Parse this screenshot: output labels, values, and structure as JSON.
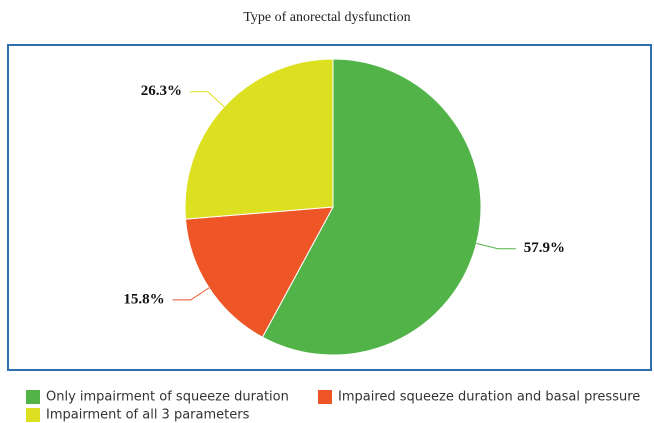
{
  "chart_data": {
    "type": "pie",
    "title": "Type of anorectal dysfunction",
    "categories": [
      "Only impairment of squeeze duration",
      "Impaired squeeze duration and basal pressure",
      "Impairment of all 3 parameters"
    ],
    "values": [
      57.9,
      15.8,
      26.3
    ],
    "value_labels": [
      "57.9%",
      "15.8%",
      "26.3%"
    ],
    "colors": [
      "#52b448",
      "#ee5527",
      "#dde020"
    ]
  }
}
